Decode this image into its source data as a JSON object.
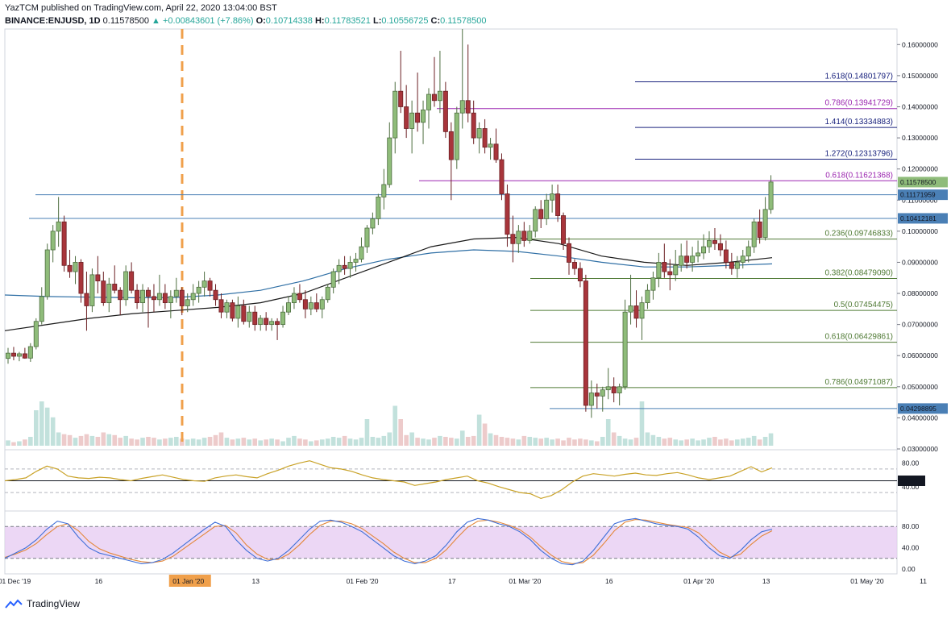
{
  "header": {
    "line1": "YazTCM published on TradingView.com, April 22, 2020 13:04:00 BST",
    "symbol": "BINANCE:ENJUSD, 1D",
    "last": "0.11578500",
    "change": "▲ +0.00843601 (+7.86%)",
    "o_label": "O:",
    "o_value": "0.10714338",
    "h_label": "H:",
    "h_value": "0.11783521",
    "l_label": "L:",
    "l_value": "0.10556725",
    "c_label": "C:",
    "c_value": "0.11578500"
  },
  "footer": {
    "brand": "TradingView"
  },
  "colors": {
    "up": "#7ca66b",
    "down": "#a8353b",
    "upFill": "#8fbc7a",
    "fibPurple": "#9c27b0",
    "fibBlue": "#1a237e",
    "fibGreen": "#4f7a34",
    "hline": "#4a7fb5",
    "ma_black": "#1a1a1a",
    "ma_blue": "#2f6fa5",
    "rsi": "#c9a227",
    "stochK": "#3f6fd8",
    "stochD": "#e3873a",
    "stochBand": "#e6c9f2"
  },
  "chart_data": {
    "type": "candlestick",
    "ylim": [
      0.03,
      0.165
    ],
    "price_ticks": [
      "0.16000000",
      "0.15000000",
      "0.14000000",
      "0.13000000",
      "0.12000000",
      "0.11000000",
      "0.10000000",
      "0.09000000",
      "0.08000000",
      "0.07000000",
      "0.06000000",
      "0.05000000",
      "0.04000000",
      "0.03000000"
    ],
    "price_tick_values": [
      0.16,
      0.15,
      0.14,
      0.13,
      0.12,
      0.11,
      0.1,
      0.09,
      0.08,
      0.07,
      0.06,
      0.05,
      0.04,
      0.03
    ],
    "x_labels": [
      "01 Dec '19",
      "16",
      "01 Jan '20",
      "13",
      "01 Feb '20",
      "17",
      "01 Mar '20",
      "16",
      "01 Apr '20",
      "13",
      "01 May '20",
      "11"
    ],
    "x_label_days": [
      0,
      15,
      31,
      43,
      62,
      78,
      91,
      106,
      122,
      134,
      152,
      162
    ],
    "fib_levels": [
      {
        "label": "1.618(0.14801797)",
        "value": 0.14801797,
        "color": "blue"
      },
      {
        "label": "0.786(0.13941729)",
        "value": 0.13941729,
        "color": "purple"
      },
      {
        "label": "1.414(0.13334883)",
        "value": 0.13334883,
        "color": "blue"
      },
      {
        "label": "1.272(0.12313796)",
        "value": 0.12313796,
        "color": "blue"
      },
      {
        "label": "0.618(0.11621368)",
        "value": 0.11621368,
        "color": "purple"
      },
      {
        "label": "0.236(0.09746833)",
        "value": 0.09746833,
        "color": "green"
      },
      {
        "label": "0.382(0.08479090)",
        "value": 0.0847909,
        "color": "green"
      },
      {
        "label": "0.5(0.07454475)",
        "value": 0.07454475,
        "color": "green"
      },
      {
        "label": "0.618(0.06429861)",
        "value": 0.06429861,
        "color": "green"
      },
      {
        "label": "0.786(0.04971087)",
        "value": 0.04971087,
        "color": "green"
      }
    ],
    "price_badges": [
      {
        "label": "0.11578500",
        "value": 0.115785,
        "style": "current"
      },
      {
        "label": "0.11171959",
        "value": 0.11171959,
        "style": "line"
      },
      {
        "label": "0.10412181",
        "value": 0.10412181,
        "style": "line"
      },
      {
        "label": "0.04298895",
        "value": 0.04298895,
        "style": "line"
      }
    ],
    "rsi": {
      "ticks": [
        "80.00",
        "40.00"
      ],
      "tick_values": [
        80,
        40
      ],
      "current_label": "50.00",
      "current_value": 50
    },
    "stoch": {
      "ticks": [
        "80.00",
        "40.00",
        "0.00"
      ],
      "tick_values": [
        80,
        40,
        0
      ]
    },
    "candles": [
      [
        0.0591,
        0.0625,
        0.0574,
        0.0608
      ],
      [
        0.0608,
        0.0628,
        0.0585,
        0.0598
      ],
      [
        0.0598,
        0.0612,
        0.0582,
        0.0606
      ],
      [
        0.0606,
        0.0625,
        0.059,
        0.0592
      ],
      [
        0.0592,
        0.064,
        0.058,
        0.0629
      ],
      [
        0.0629,
        0.072,
        0.062,
        0.071
      ],
      [
        0.071,
        0.082,
        0.07,
        0.079
      ],
      [
        0.079,
        0.096,
        0.078,
        0.094
      ],
      [
        0.094,
        0.102,
        0.09,
        0.1
      ],
      [
        0.1,
        0.111,
        0.095,
        0.103
      ],
      [
        0.103,
        0.105,
        0.087,
        0.089
      ],
      [
        0.089,
        0.094,
        0.085,
        0.087
      ],
      [
        0.087,
        0.092,
        0.083,
        0.09
      ],
      [
        0.09,
        0.091,
        0.077,
        0.08
      ],
      [
        0.08,
        0.087,
        0.068,
        0.076
      ],
      [
        0.076,
        0.088,
        0.074,
        0.086
      ],
      [
        0.086,
        0.092,
        0.08,
        0.084
      ],
      [
        0.084,
        0.087,
        0.076,
        0.077
      ],
      [
        0.077,
        0.085,
        0.074,
        0.083
      ],
      [
        0.083,
        0.089,
        0.08,
        0.081
      ],
      [
        0.081,
        0.082,
        0.073,
        0.078
      ],
      [
        0.078,
        0.089,
        0.076,
        0.087
      ],
      [
        0.087,
        0.09,
        0.08,
        0.081
      ],
      [
        0.081,
        0.083,
        0.075,
        0.077
      ],
      [
        0.077,
        0.083,
        0.074,
        0.081
      ],
      [
        0.081,
        0.082,
        0.069,
        0.079
      ],
      [
        0.079,
        0.083,
        0.074,
        0.078
      ],
      [
        0.078,
        0.086,
        0.076,
        0.08
      ],
      [
        0.08,
        0.083,
        0.075,
        0.077
      ],
      [
        0.077,
        0.081,
        0.072,
        0.079
      ],
      [
        0.079,
        0.085,
        0.077,
        0.081
      ],
      [
        0.081,
        0.082,
        0.073,
        0.076
      ],
      [
        0.076,
        0.08,
        0.074,
        0.078
      ],
      [
        0.078,
        0.083,
        0.076,
        0.08
      ],
      [
        0.08,
        0.084,
        0.077,
        0.082
      ],
      [
        0.082,
        0.087,
        0.079,
        0.084
      ],
      [
        0.084,
        0.085,
        0.079,
        0.081
      ],
      [
        0.081,
        0.083,
        0.076,
        0.078
      ],
      [
        0.078,
        0.08,
        0.072,
        0.074
      ],
      [
        0.074,
        0.078,
        0.072,
        0.077
      ],
      [
        0.077,
        0.078,
        0.071,
        0.072
      ],
      [
        0.072,
        0.079,
        0.069,
        0.076
      ],
      [
        0.076,
        0.078,
        0.07,
        0.071
      ],
      [
        0.071,
        0.076,
        0.069,
        0.074
      ],
      [
        0.074,
        0.076,
        0.068,
        0.07
      ],
      [
        0.07,
        0.073,
        0.068,
        0.072
      ],
      [
        0.072,
        0.074,
        0.068,
        0.07
      ],
      [
        0.07,
        0.072,
        0.068,
        0.071
      ],
      [
        0.071,
        0.072,
        0.065,
        0.07
      ],
      [
        0.07,
        0.076,
        0.069,
        0.074
      ],
      [
        0.074,
        0.079,
        0.073,
        0.077
      ],
      [
        0.077,
        0.082,
        0.075,
        0.08
      ],
      [
        0.08,
        0.083,
        0.077,
        0.078
      ],
      [
        0.078,
        0.081,
        0.072,
        0.075
      ],
      [
        0.075,
        0.079,
        0.073,
        0.077
      ],
      [
        0.077,
        0.08,
        0.074,
        0.075
      ],
      [
        0.075,
        0.079,
        0.072,
        0.078
      ],
      [
        0.078,
        0.083,
        0.077,
        0.082
      ],
      [
        0.082,
        0.088,
        0.08,
        0.087
      ],
      [
        0.087,
        0.091,
        0.083,
        0.089
      ],
      [
        0.089,
        0.092,
        0.086,
        0.088
      ],
      [
        0.088,
        0.092,
        0.085,
        0.09
      ],
      [
        0.09,
        0.093,
        0.087,
        0.091
      ],
      [
        0.091,
        0.098,
        0.09,
        0.095
      ],
      [
        0.095,
        0.102,
        0.093,
        0.101
      ],
      [
        0.101,
        0.106,
        0.099,
        0.104
      ],
      [
        0.104,
        0.112,
        0.102,
        0.111
      ],
      [
        0.111,
        0.12,
        0.107,
        0.115
      ],
      [
        0.115,
        0.135,
        0.114,
        0.13
      ],
      [
        0.13,
        0.148,
        0.125,
        0.145
      ],
      [
        0.145,
        0.158,
        0.138,
        0.14
      ],
      [
        0.14,
        0.147,
        0.13,
        0.133
      ],
      [
        0.133,
        0.142,
        0.125,
        0.138
      ],
      [
        0.138,
        0.151,
        0.132,
        0.135
      ],
      [
        0.135,
        0.142,
        0.128,
        0.139
      ],
      [
        0.139,
        0.146,
        0.133,
        0.144
      ],
      [
        0.144,
        0.156,
        0.14,
        0.142
      ],
      [
        0.142,
        0.158,
        0.138,
        0.145
      ],
      [
        0.145,
        0.148,
        0.13,
        0.132
      ],
      [
        0.132,
        0.135,
        0.11,
        0.123
      ],
      [
        0.123,
        0.14,
        0.12,
        0.138
      ],
      [
        0.138,
        0.165,
        0.133,
        0.142
      ],
      [
        0.142,
        0.16,
        0.135,
        0.138
      ],
      [
        0.138,
        0.142,
        0.128,
        0.13
      ],
      [
        0.13,
        0.135,
        0.125,
        0.133
      ],
      [
        0.133,
        0.136,
        0.125,
        0.127
      ],
      [
        0.127,
        0.13,
        0.123,
        0.128
      ],
      [
        0.128,
        0.133,
        0.122,
        0.123
      ],
      [
        0.123,
        0.125,
        0.11,
        0.112
      ],
      [
        0.112,
        0.115,
        0.095,
        0.099
      ],
      [
        0.099,
        0.105,
        0.09,
        0.096
      ],
      [
        0.096,
        0.102,
        0.093,
        0.1
      ],
      [
        0.1,
        0.103,
        0.095,
        0.097
      ],
      [
        0.097,
        0.102,
        0.096,
        0.1
      ],
      [
        0.1,
        0.108,
        0.098,
        0.107
      ],
      [
        0.107,
        0.11,
        0.101,
        0.104
      ],
      [
        0.104,
        0.112,
        0.102,
        0.11
      ],
      [
        0.11,
        0.115,
        0.106,
        0.112
      ],
      [
        0.112,
        0.115,
        0.103,
        0.105
      ],
      [
        0.105,
        0.106,
        0.094,
        0.096
      ],
      [
        0.096,
        0.098,
        0.086,
        0.09
      ],
      [
        0.09,
        0.091,
        0.086,
        0.088
      ],
      [
        0.088,
        0.09,
        0.082,
        0.084
      ],
      [
        0.084,
        0.086,
        0.042,
        0.044
      ],
      [
        0.044,
        0.052,
        0.04,
        0.048
      ],
      [
        0.048,
        0.051,
        0.043,
        0.047
      ],
      [
        0.047,
        0.05,
        0.042,
        0.049
      ],
      [
        0.049,
        0.056,
        0.046,
        0.05
      ],
      [
        0.05,
        0.053,
        0.045,
        0.048
      ],
      [
        0.048,
        0.051,
        0.044,
        0.05
      ],
      [
        0.05,
        0.078,
        0.049,
        0.074
      ],
      [
        0.074,
        0.086,
        0.07,
        0.076
      ],
      [
        0.076,
        0.081,
        0.069,
        0.072
      ],
      [
        0.072,
        0.079,
        0.065,
        0.077
      ],
      [
        0.077,
        0.083,
        0.075,
        0.081
      ],
      [
        0.081,
        0.087,
        0.078,
        0.085
      ],
      [
        0.085,
        0.093,
        0.082,
        0.09
      ],
      [
        0.09,
        0.096,
        0.085,
        0.087
      ],
      [
        0.087,
        0.091,
        0.081,
        0.086
      ],
      [
        0.086,
        0.094,
        0.084,
        0.089
      ],
      [
        0.089,
        0.096,
        0.087,
        0.092
      ],
      [
        0.092,
        0.097,
        0.088,
        0.09
      ],
      [
        0.09,
        0.095,
        0.087,
        0.092
      ],
      [
        0.092,
        0.097,
        0.09,
        0.093
      ],
      [
        0.093,
        0.099,
        0.091,
        0.095
      ],
      [
        0.095,
        0.1,
        0.093,
        0.097
      ],
      [
        0.097,
        0.101,
        0.094,
        0.096
      ],
      [
        0.096,
        0.099,
        0.092,
        0.094
      ],
      [
        0.094,
        0.097,
        0.088,
        0.09
      ],
      [
        0.09,
        0.093,
        0.086,
        0.088
      ],
      [
        0.088,
        0.092,
        0.085,
        0.09
      ],
      [
        0.09,
        0.094,
        0.088,
        0.092
      ],
      [
        0.092,
        0.097,
        0.09,
        0.095
      ],
      [
        0.095,
        0.104,
        0.093,
        0.103
      ],
      [
        0.103,
        0.107,
        0.096,
        0.098
      ],
      [
        0.098,
        0.111,
        0.097,
        0.107
      ],
      [
        0.107,
        0.118,
        0.1056,
        0.1158
      ]
    ],
    "ma_black": [
      0.068,
      0.07,
      0.072,
      0.0735,
      0.0745,
      0.0755,
      0.077,
      0.08,
      0.085,
      0.09,
      0.095,
      0.0975,
      0.098,
      0.096,
      0.092,
      0.09,
      0.089,
      0.09,
      0.0915
    ],
    "ma_blue": [
      0.0795,
      0.079,
      0.0788,
      0.0786,
      0.0787,
      0.0795,
      0.081,
      0.084,
      0.088,
      0.091,
      0.093,
      0.094,
      0.0935,
      0.092,
      0.09,
      0.0885,
      0.0885,
      0.089,
      0.0895
    ],
    "rsi_values": [
      50,
      52,
      55,
      66,
      75,
      70,
      58,
      55,
      54,
      56,
      55,
      52,
      50,
      54,
      57,
      60,
      56,
      52,
      50,
      49,
      55,
      58,
      60,
      57,
      55,
      62,
      68,
      75,
      80,
      84,
      78,
      72,
      70,
      66,
      60,
      55,
      52,
      50,
      48,
      42,
      45,
      48,
      52,
      55,
      58,
      50,
      46,
      40,
      35,
      30,
      28,
      20,
      25,
      35,
      48,
      58,
      62,
      60,
      58,
      61,
      63,
      60,
      59,
      62,
      64,
      60,
      55,
      52,
      55,
      58,
      66,
      74,
      65,
      72
    ],
    "stoch_k": [
      20,
      30,
      40,
      55,
      75,
      90,
      85,
      60,
      40,
      30,
      25,
      20,
      15,
      10,
      12,
      18,
      30,
      45,
      60,
      75,
      88,
      80,
      55,
      35,
      20,
      15,
      20,
      35,
      55,
      75,
      90,
      92,
      88,
      80,
      70,
      55,
      40,
      25,
      15,
      10,
      15,
      25,
      45,
      70,
      88,
      95,
      92,
      85,
      80,
      70,
      55,
      35,
      20,
      10,
      8,
      15,
      35,
      60,
      85,
      92,
      95,
      90,
      85,
      82,
      80,
      75,
      60,
      40,
      25,
      20,
      35,
      55,
      70,
      75
    ],
    "stoch_d": [
      22,
      28,
      36,
      48,
      65,
      80,
      85,
      72,
      52,
      38,
      30,
      24,
      18,
      14,
      12,
      15,
      24,
      38,
      52,
      66,
      80,
      82,
      68,
      45,
      28,
      18,
      18,
      28,
      45,
      65,
      82,
      90,
      90,
      85,
      76,
      62,
      48,
      32,
      20,
      12,
      12,
      20,
      36,
      58,
      78,
      90,
      92,
      88,
      82,
      74,
      60,
      42,
      26,
      14,
      10,
      12,
      26,
      48,
      72,
      88,
      93,
      92,
      88,
      84,
      81,
      78,
      68,
      50,
      32,
      22,
      28,
      46,
      62,
      72
    ]
  }
}
